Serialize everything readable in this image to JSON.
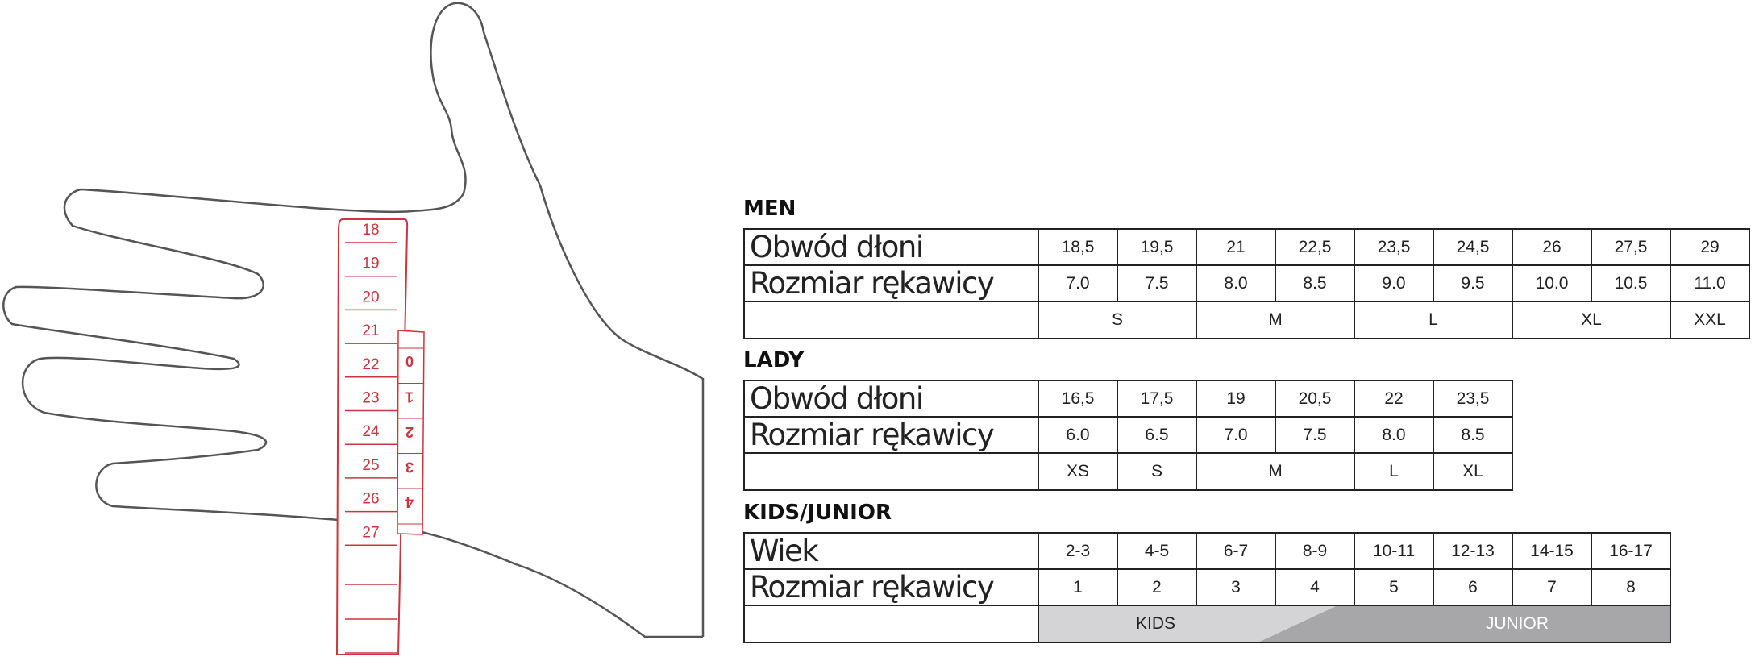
{
  "tape": {
    "main_marks": [
      "18",
      "19",
      "20",
      "21",
      "22",
      "23",
      "24",
      "25",
      "26",
      "27"
    ],
    "offset_marks": [
      "0",
      "1",
      "2",
      "3",
      "4"
    ],
    "color": "#c9363f"
  },
  "men": {
    "title": "MEN",
    "row1_label": "Obwód dłoni",
    "row2_label": "Rozmiar rękawicy",
    "circumference": [
      "18,5",
      "19,5",
      "21",
      "22,5",
      "23,5",
      "24,5",
      "26",
      "27,5",
      "29"
    ],
    "glove_size": [
      "7.0",
      "7.5",
      "8.0",
      "8.5",
      "9.0",
      "9.5",
      "10.0",
      "10.5",
      "11.0"
    ],
    "letters": [
      "S",
      "M",
      "L",
      "XL",
      "XXL"
    ]
  },
  "lady": {
    "title": "LADY",
    "row1_label": "Obwód dłoni",
    "row2_label": "Rozmiar rękawicy",
    "circumference": [
      "16,5",
      "17,5",
      "19",
      "20,5",
      "22",
      "23,5"
    ],
    "glove_size": [
      "6.0",
      "6.5",
      "7.0",
      "7.5",
      "8.0",
      "8.5"
    ],
    "letters": [
      "XS",
      "S",
      "M",
      "L",
      "XL"
    ]
  },
  "kids": {
    "title": "KIDS/JUNIOR",
    "row1_label": "Wiek",
    "row2_label": "Rozmiar rękawicy",
    "age": [
      "2-3",
      "4-5",
      "6-7",
      "8-9",
      "10-11",
      "12-13",
      "14-15",
      "16-17"
    ],
    "glove_size": [
      "1",
      "2",
      "3",
      "4",
      "5",
      "6",
      "7",
      "8"
    ],
    "kids_label": "KIDS",
    "junior_label": "JUNIOR"
  }
}
